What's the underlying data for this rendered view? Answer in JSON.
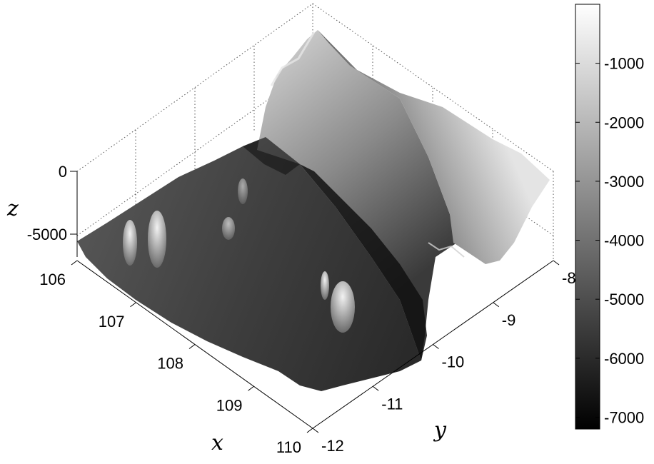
{
  "chart_data": {
    "type": "surface3d",
    "title": "",
    "xlabel": "x",
    "ylabel": "y",
    "zlabel": "z",
    "xlim": [
      106,
      110
    ],
    "ylim": [
      -12,
      -8
    ],
    "zlim": [
      -7000,
      0
    ],
    "x_ticks": [
      "106",
      "107",
      "108",
      "109",
      "110"
    ],
    "y_ticks": [
      "-12",
      "-11",
      "-10",
      "-9",
      "-8"
    ],
    "z_ticks": [
      "0",
      "-5000"
    ],
    "colormap": "gray",
    "colorbar": {
      "range": [
        -7200,
        0
      ],
      "ticks": [
        "-1000",
        "-2000",
        "-3000",
        "-4000",
        "-5000",
        "-6000",
        "-7000"
      ],
      "tick_values": [
        -1000,
        -2000,
        -3000,
        -4000,
        -5000,
        -6000,
        -7000
      ]
    },
    "grid": true,
    "colors": {
      "low": "#000000",
      "high": "#ffffff"
    }
  }
}
